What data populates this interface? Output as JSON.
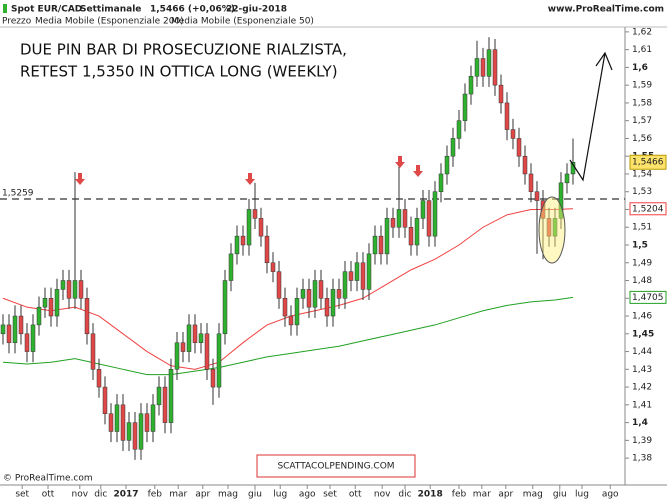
{
  "chart_data": {
    "type": "candlestick",
    "header": {
      "instrument": "Spot EUR/CAD",
      "period": "Settimanale",
      "quote": "1,5466 (+0,06%)",
      "date": "22-giu-2018",
      "source": "www.ProRealTime.com"
    },
    "price_label": "Prezzo",
    "title_lines": [
      "DUE PIN BAR DI PROSECUZIONE RIALZISTA,",
      "RETEST 1,5350 IN OTTICA LONG (WEEKLY)"
    ],
    "copyright": "© ProRealTime.com",
    "watermark": "SCATTACOLPENDING.COM",
    "up_color": "#2fb12f",
    "down_color": "#e04848",
    "open": [
      1.45,
      1.455,
      1.445,
      1.46,
      1.45,
      1.44,
      1.455,
      1.465,
      1.47,
      1.46,
      1.475,
      1.48,
      1.47,
      1.48,
      1.47,
      1.45,
      1.43,
      1.42,
      1.405,
      1.395,
      1.41,
      1.39,
      1.4,
      1.385,
      1.405,
      1.395,
      1.41,
      1.42,
      1.4,
      1.43,
      1.445,
      1.44,
      1.455,
      1.445,
      1.45,
      1.43,
      1.42,
      1.45,
      1.48,
      1.495,
      1.505,
      1.5,
      1.52,
      1.515,
      1.505,
      1.49,
      1.485,
      1.47,
      1.46,
      1.455,
      1.47,
      1.475,
      1.465,
      1.48,
      1.47,
      1.46,
      1.475,
      1.47,
      1.485,
      1.48,
      1.49,
      1.475,
      1.495,
      1.505,
      1.495,
      1.515,
      1.51,
      1.52,
      1.51,
      1.5,
      1.515,
      1.525,
      1.505,
      1.53,
      1.54,
      1.55,
      1.56,
      1.57,
      1.585,
      1.595,
      1.605,
      1.595,
      1.61,
      1.59,
      1.58,
      1.565,
      1.56,
      1.55,
      1.54,
      1.53,
      1.525,
      1.515,
      1.505,
      1.515,
      1.535,
      1.54
    ],
    "high": [
      1.461,
      1.461,
      1.466,
      1.466,
      1.456,
      1.461,
      1.471,
      1.476,
      1.476,
      1.481,
      1.486,
      1.486,
      1.541,
      1.486,
      1.476,
      1.456,
      1.436,
      1.426,
      1.411,
      1.416,
      1.416,
      1.406,
      1.406,
      1.411,
      1.411,
      1.416,
      1.426,
      1.426,
      1.436,
      1.451,
      1.451,
      1.461,
      1.461,
      1.456,
      1.456,
      1.436,
      1.456,
      1.486,
      1.501,
      1.511,
      1.511,
      1.526,
      1.535,
      1.521,
      1.511,
      1.496,
      1.491,
      1.476,
      1.466,
      1.476,
      1.481,
      1.481,
      1.486,
      1.486,
      1.476,
      1.481,
      1.481,
      1.491,
      1.491,
      1.496,
      1.496,
      1.501,
      1.511,
      1.511,
      1.521,
      1.521,
      1.545,
      1.526,
      1.516,
      1.521,
      1.531,
      1.531,
      1.536,
      1.546,
      1.556,
      1.566,
      1.576,
      1.591,
      1.601,
      1.615,
      1.611,
      1.617,
      1.616,
      1.596,
      1.586,
      1.571,
      1.566,
      1.556,
      1.546,
      1.536,
      1.531,
      1.521,
      1.521,
      1.541,
      1.546,
      1.56
    ],
    "low": [
      1.444,
      1.439,
      1.439,
      1.444,
      1.434,
      1.434,
      1.449,
      1.459,
      1.454,
      1.454,
      1.469,
      1.464,
      1.464,
      1.464,
      1.444,
      1.424,
      1.414,
      1.399,
      1.389,
      1.389,
      1.384,
      1.384,
      1.379,
      1.379,
      1.389,
      1.389,
      1.404,
      1.394,
      1.394,
      1.424,
      1.434,
      1.434,
      1.439,
      1.439,
      1.424,
      1.41,
      1.414,
      1.444,
      1.474,
      1.489,
      1.494,
      1.494,
      1.509,
      1.499,
      1.484,
      1.479,
      1.464,
      1.454,
      1.449,
      1.449,
      1.464,
      1.459,
      1.459,
      1.464,
      1.454,
      1.454,
      1.464,
      1.464,
      1.474,
      1.474,
      1.469,
      1.469,
      1.489,
      1.489,
      1.489,
      1.504,
      1.504,
      1.504,
      1.494,
      1.494,
      1.509,
      1.499,
      1.499,
      1.524,
      1.534,
      1.544,
      1.554,
      1.564,
      1.579,
      1.589,
      1.589,
      1.589,
      1.584,
      1.574,
      1.559,
      1.554,
      1.544,
      1.534,
      1.524,
      1.495,
      1.492,
      1.499,
      1.499,
      1.509,
      1.529,
      1.534
    ],
    "close": [
      1.455,
      1.445,
      1.46,
      1.45,
      1.44,
      1.455,
      1.465,
      1.47,
      1.46,
      1.475,
      1.48,
      1.47,
      1.48,
      1.47,
      1.45,
      1.43,
      1.42,
      1.405,
      1.395,
      1.41,
      1.39,
      1.4,
      1.385,
      1.405,
      1.395,
      1.41,
      1.42,
      1.4,
      1.43,
      1.445,
      1.44,
      1.455,
      1.445,
      1.45,
      1.43,
      1.42,
      1.45,
      1.48,
      1.495,
      1.505,
      1.5,
      1.52,
      1.515,
      1.505,
      1.49,
      1.485,
      1.47,
      1.46,
      1.455,
      1.47,
      1.475,
      1.465,
      1.48,
      1.47,
      1.46,
      1.475,
      1.47,
      1.485,
      1.48,
      1.49,
      1.475,
      1.495,
      1.505,
      1.495,
      1.515,
      1.51,
      1.52,
      1.51,
      1.5,
      1.515,
      1.525,
      1.505,
      1.53,
      1.54,
      1.55,
      1.56,
      1.57,
      1.585,
      1.595,
      1.605,
      1.595,
      1.61,
      1.59,
      1.58,
      1.565,
      1.56,
      1.55,
      1.54,
      1.53,
      1.525,
      1.515,
      1.505,
      1.515,
      1.535,
      1.54,
      1.5466
    ],
    "last_close_label": "1,5466",
    "series": [
      {
        "name": "Media Mobile (Esponenziale 200)",
        "color": "#22a022",
        "last_value_label": "1,4705",
        "x": [
          0,
          4,
          8,
          12,
          16,
          20,
          24,
          28,
          32,
          36,
          40,
          44,
          48,
          52,
          56,
          60,
          64,
          68,
          72,
          76,
          80,
          84,
          88,
          92,
          95
        ],
        "values": [
          1.434,
          1.433,
          1.434,
          1.436,
          1.433,
          1.43,
          1.427,
          1.427,
          1.429,
          1.431,
          1.434,
          1.437,
          1.439,
          1.441,
          1.443,
          1.446,
          1.449,
          1.452,
          1.455,
          1.459,
          1.463,
          1.466,
          1.468,
          1.469,
          1.4705
        ]
      },
      {
        "name": "Media Mobile (Esponenziale 50)",
        "color": "#f04040",
        "last_value_label": "1,5204",
        "x": [
          0,
          4,
          8,
          12,
          16,
          20,
          24,
          28,
          32,
          36,
          40,
          44,
          48,
          52,
          56,
          60,
          64,
          68,
          72,
          76,
          80,
          84,
          88,
          92,
          95
        ],
        "values": [
          1.47,
          1.465,
          1.463,
          1.465,
          1.46,
          1.45,
          1.44,
          1.432,
          1.43,
          1.434,
          1.445,
          1.455,
          1.46,
          1.463,
          1.466,
          1.47,
          1.478,
          1.486,
          1.492,
          1.5,
          1.51,
          1.517,
          1.52,
          1.52,
          1.5204
        ]
      }
    ],
    "hline": {
      "value": 1.5259,
      "label": "1,5259"
    },
    "xlim": [
      -0.5,
      103.5
    ],
    "xticks": [
      {
        "value": 3.2,
        "label": "set"
      },
      {
        "value": 7.5,
        "label": "ott"
      },
      {
        "value": 12.8,
        "label": "nov"
      },
      {
        "value": 16.3,
        "label": "dic"
      },
      {
        "value": 20.5,
        "label": "2017"
      },
      {
        "value": 25.3,
        "label": "feb"
      },
      {
        "value": 29.2,
        "label": "mar"
      },
      {
        "value": 33.3,
        "label": "apr"
      },
      {
        "value": 37.5,
        "label": "mag"
      },
      {
        "value": 42,
        "label": "giu"
      },
      {
        "value": 46.2,
        "label": "lug"
      },
      {
        "value": 50.7,
        "label": "ago"
      },
      {
        "value": 54.5,
        "label": "set"
      },
      {
        "value": 58.7,
        "label": "ott"
      },
      {
        "value": 63.2,
        "label": "nov"
      },
      {
        "value": 67,
        "label": "dic"
      },
      {
        "value": 71.2,
        "label": "2018"
      },
      {
        "value": 76,
        "label": "feb"
      },
      {
        "value": 79.8,
        "label": "mar"
      },
      {
        "value": 83.8,
        "label": "apr"
      },
      {
        "value": 88.3,
        "label": "mag"
      },
      {
        "value": 92.8,
        "label": "giu"
      },
      {
        "value": 96.5,
        "label": "lug"
      },
      {
        "value": 101.2,
        "label": "ago"
      }
    ],
    "ylim": [
      1.375,
      1.625
    ],
    "yticks": [
      {
        "value": 1.38,
        "label": "1,38"
      },
      {
        "value": 1.39,
        "label": "1,39"
      },
      {
        "value": 1.4,
        "label": "1,4"
      },
      {
        "value": 1.41,
        "label": "1,41"
      },
      {
        "value": 1.42,
        "label": "1,42"
      },
      {
        "value": 1.43,
        "label": "1,43"
      },
      {
        "value": 1.44,
        "label": "1,44"
      },
      {
        "value": 1.45,
        "label": "1,45"
      },
      {
        "value": 1.46,
        "label": "1,46"
      },
      {
        "value": 1.47,
        "label": "1,47"
      },
      {
        "value": 1.48,
        "label": "1,48"
      },
      {
        "value": 1.49,
        "label": "1,49"
      },
      {
        "value": 1.5,
        "label": "1,5"
      },
      {
        "value": 1.51,
        "label": "1,51"
      },
      {
        "value": 1.52,
        "label": "1,52"
      },
      {
        "value": 1.53,
        "label": "1,53"
      },
      {
        "value": 1.54,
        "label": "1,54"
      },
      {
        "value": 1.55,
        "label": "1,55"
      },
      {
        "value": 1.56,
        "label": "1,56"
      },
      {
        "value": 1.57,
        "label": "1,57"
      },
      {
        "value": 1.58,
        "label": "1,58"
      },
      {
        "value": 1.59,
        "label": "1,59"
      },
      {
        "value": 1.6,
        "label": "1,6"
      },
      {
        "value": 1.61,
        "label": "1,61"
      },
      {
        "value": 1.62,
        "label": "1,62"
      }
    ]
  }
}
